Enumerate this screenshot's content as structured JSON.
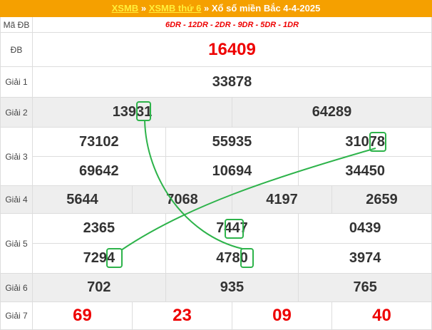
{
  "header": {
    "link1": "XSMB",
    "separator": "»",
    "link2": "XSMB thứ 6",
    "title": "Xổ số miền Bắc 4-4-2025"
  },
  "table": {
    "groups": [
      {
        "label": "Mã ĐB",
        "rows": [
          [
            "6DR - 12DR - 2DR - 9DR - 5DR - 1DR"
          ]
        ]
      },
      {
        "label": "ĐB",
        "rows": [
          [
            "16409"
          ]
        ]
      },
      {
        "label": "Giải 1",
        "rows": [
          [
            "33878"
          ]
        ]
      },
      {
        "label": "Giải 2",
        "rows": [
          [
            "13931",
            "64289"
          ]
        ]
      },
      {
        "label": "Giải 3",
        "rows": [
          [
            "73102",
            "55935",
            "31078"
          ],
          [
            "69642",
            "10694",
            "34450"
          ]
        ]
      },
      {
        "label": "Giải 4",
        "rows": [
          [
            "5644",
            "7068",
            "4197",
            "2659"
          ]
        ]
      },
      {
        "label": "Giải 5",
        "rows": [
          [
            "2365",
            "7447",
            "0439"
          ],
          [
            "7294",
            "4780",
            "3974"
          ]
        ]
      },
      {
        "label": "Giải 6",
        "rows": [
          [
            "702",
            "935",
            "765"
          ]
        ]
      },
      {
        "label": "Giải 7",
        "rows": [
          [
            "69",
            "23",
            "09",
            "40"
          ]
        ]
      }
    ]
  }
}
